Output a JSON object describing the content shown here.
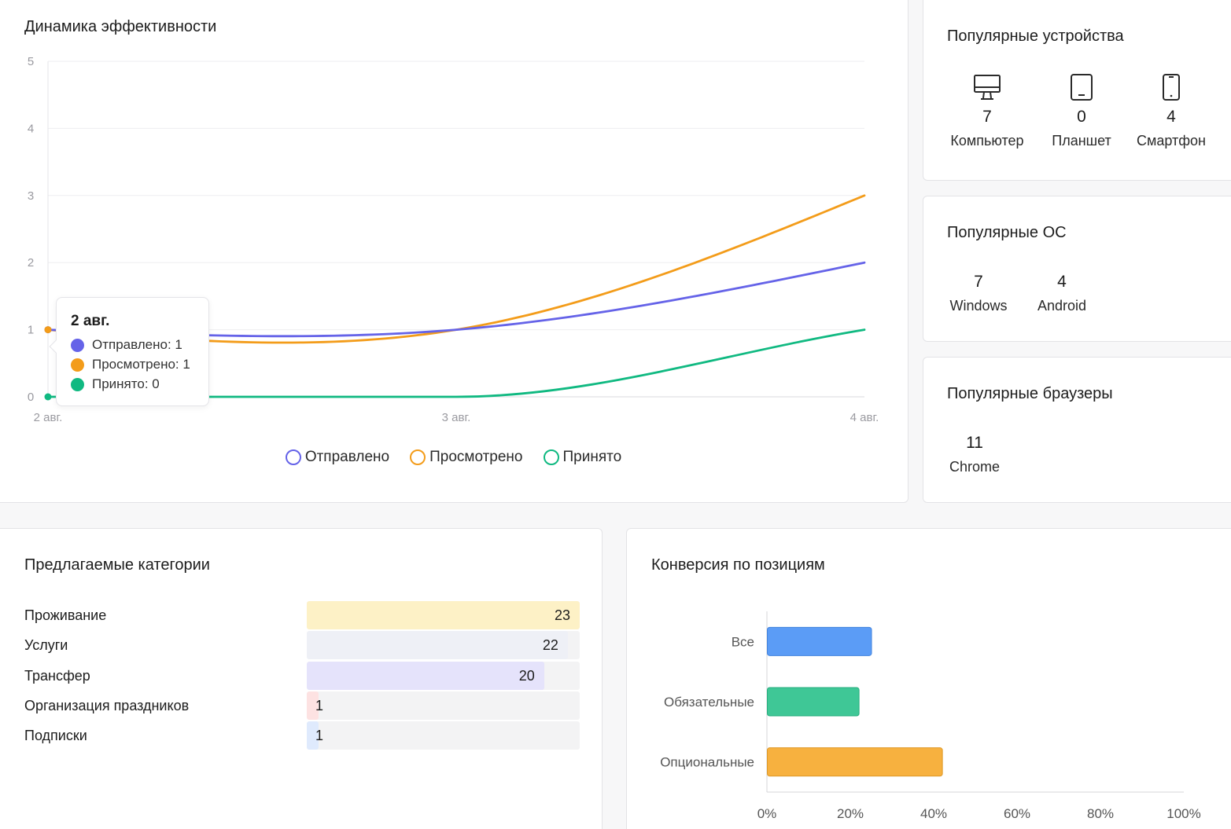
{
  "performance": {
    "title": "Динамика эффективности",
    "tooltip": {
      "title": "2 авг.",
      "rows": [
        {
          "text": "Отправлено: 1",
          "color": "#6563e8"
        },
        {
          "text": "Просмотрено: 1",
          "color": "#f39c1a"
        },
        {
          "text": "Принято: 0",
          "color": "#10b981"
        }
      ]
    },
    "legend": [
      {
        "label": "Отправлено",
        "color": "#6563e8"
      },
      {
        "label": "Просмотрено",
        "color": "#f39c1a"
      },
      {
        "label": "Принято",
        "color": "#10b981"
      }
    ]
  },
  "chart_data": [
    {
      "type": "line",
      "title": "Динамика эффективности",
      "categories": [
        "2 авг.",
        "3 авг.",
        "4 авг."
      ],
      "ylim": [
        0,
        5
      ],
      "yticks": [
        "0",
        "1",
        "2",
        "3",
        "4",
        "5"
      ],
      "grid": true,
      "legend_position": "bottom",
      "series": [
        {
          "name": "Отправлено",
          "values": [
            1,
            1,
            2
          ],
          "color": "#6563e8"
        },
        {
          "name": "Просмотрено",
          "values": [
            1,
            1,
            3
          ],
          "color": "#f39c1a"
        },
        {
          "name": "Принято",
          "values": [
            0,
            0,
            1
          ],
          "color": "#10b981"
        }
      ]
    },
    {
      "type": "bar",
      "title": "Конверсия по позициям",
      "orientation": "horizontal",
      "categories": [
        "Все",
        "Обязательные",
        "Опциональные"
      ],
      "values": [
        25,
        22,
        42
      ],
      "colors": [
        "#5b9cf6",
        "#3fc796",
        "#f7b13f"
      ],
      "xlim": [
        0,
        100
      ],
      "xticks": [
        "0%",
        "20%",
        "40%",
        "60%",
        "80%",
        "100%"
      ]
    }
  ],
  "devices": {
    "title": "Популярные устройства",
    "items": [
      {
        "value": "7",
        "label": "Компьютер",
        "icon": "desktop-icon"
      },
      {
        "value": "0",
        "label": "Планшет",
        "icon": "tablet-icon"
      },
      {
        "value": "4",
        "label": "Смартфон",
        "icon": "smartphone-icon"
      }
    ]
  },
  "os": {
    "title": "Популярные ОС",
    "items": [
      {
        "value": "7",
        "label": "Windows"
      },
      {
        "value": "4",
        "label": "Android"
      }
    ]
  },
  "browsers": {
    "title": "Популярные браузеры",
    "items": [
      {
        "value": "11",
        "label": "Chrome"
      }
    ]
  },
  "categories": {
    "title": "Предлагаемые категории",
    "max": 23,
    "items": [
      {
        "label": "Проживание",
        "value": 23,
        "value_text": "23",
        "color": "#fdf1c6"
      },
      {
        "label": "Услуги",
        "value": 22,
        "value_text": "22",
        "color": "#eef0f6"
      },
      {
        "label": "Трансфер",
        "value": 20,
        "value_text": "20",
        "color": "#e5e3fb"
      },
      {
        "label": "Организация праздников",
        "value": 1,
        "value_text": "1",
        "color": "#fde2e2"
      },
      {
        "label": "Подписки",
        "value": 1,
        "value_text": "1",
        "color": "#dfeafd"
      }
    ]
  },
  "conversion": {
    "title": "Конверсия по позициям"
  }
}
